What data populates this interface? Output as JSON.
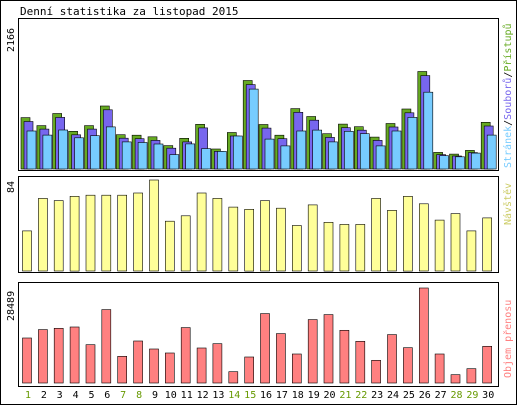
{
  "chart_data": [
    {
      "type": "bar",
      "title": "Denní statistika za listopad 2015",
      "max_label": "2166",
      "categories": [
        "1",
        "2",
        "3",
        "4",
        "5",
        "6",
        "7",
        "8",
        "9",
        "10",
        "11",
        "12",
        "13",
        "14",
        "15",
        "16",
        "17",
        "18",
        "19",
        "20",
        "21",
        "22",
        "23",
        "24",
        "25",
        "26",
        "27",
        "28",
        "29",
        "30"
      ],
      "weekend_days": [
        "1",
        "7",
        "8",
        "14",
        "15",
        "21",
        "22",
        "28",
        "29"
      ],
      "legend": [
        "Stránek",
        "Souborů",
        "Přístupů"
      ],
      "series": [
        {
          "name": "Přístupů",
          "color": "#66aa22",
          "values": [
            758,
            640,
            818,
            555,
            640,
            929,
            505,
            498,
            474,
            345,
            452,
            658,
            294,
            538,
            1304,
            655,
            498,
            890,
            773,
            520,
            662,
            623,
            470,
            671,
            884,
            1436,
            244,
            220,
            274,
            688
          ]
        },
        {
          "name": "Souborů",
          "color": "#7766ee",
          "values": [
            700,
            588,
            760,
            504,
            588,
            873,
            454,
            447,
            422,
            306,
            400,
            605,
            260,
            486,
            1244,
            603,
            447,
            835,
            719,
            466,
            609,
            571,
            422,
            619,
            828,
            1376,
            212,
            191,
            242,
            633
          ]
        },
        {
          "name": "Stránek",
          "color": "#77ccff",
          "values": [
            560,
            500,
            574,
            460,
            490,
            620,
            400,
            390,
            368,
            212,
            370,
            300,
            260,
            486,
            1178,
            440,
            340,
            560,
            573,
            400,
            555,
            520,
            340,
            560,
            760,
            1131,
            196,
            180,
            235,
            500
          ]
        }
      ],
      "ylim": [
        0,
        2166
      ]
    },
    {
      "type": "bar",
      "max_label": "84",
      "legend": [
        "Návštěv"
      ],
      "series": [
        {
          "name": "Návštěv",
          "color": "#ffff99",
          "values": [
            37,
            67,
            65,
            69,
            70,
            70,
            70,
            72,
            84,
            46,
            51,
            72,
            67,
            59,
            57,
            65,
            58,
            42,
            61,
            45,
            43,
            43,
            67,
            56,
            69,
            62,
            47,
            53,
            37,
            49
          ]
        }
      ],
      "ylim": [
        0,
        84
      ]
    },
    {
      "type": "bar",
      "max_label": "28489",
      "legend": [
        "Objem přenosu"
      ],
      "series": [
        {
          "name": "Objem přenosu",
          "color": "#ff8080",
          "values": [
            13500,
            16000,
            16400,
            16800,
            11500,
            22000,
            8000,
            12600,
            10200,
            9000,
            16600,
            10500,
            11800,
            3400,
            7800,
            20800,
            14800,
            8700,
            19000,
            20500,
            15800,
            12500,
            6800,
            14500,
            10600,
            28489,
            8700,
            2500,
            4300,
            11000
          ]
        }
      ],
      "ylim": [
        0,
        28489
      ]
    }
  ],
  "colors": {
    "frame": "#000000",
    "background": "#ffffff",
    "weekday_label": "#000000",
    "weekend_label": "#669900"
  }
}
